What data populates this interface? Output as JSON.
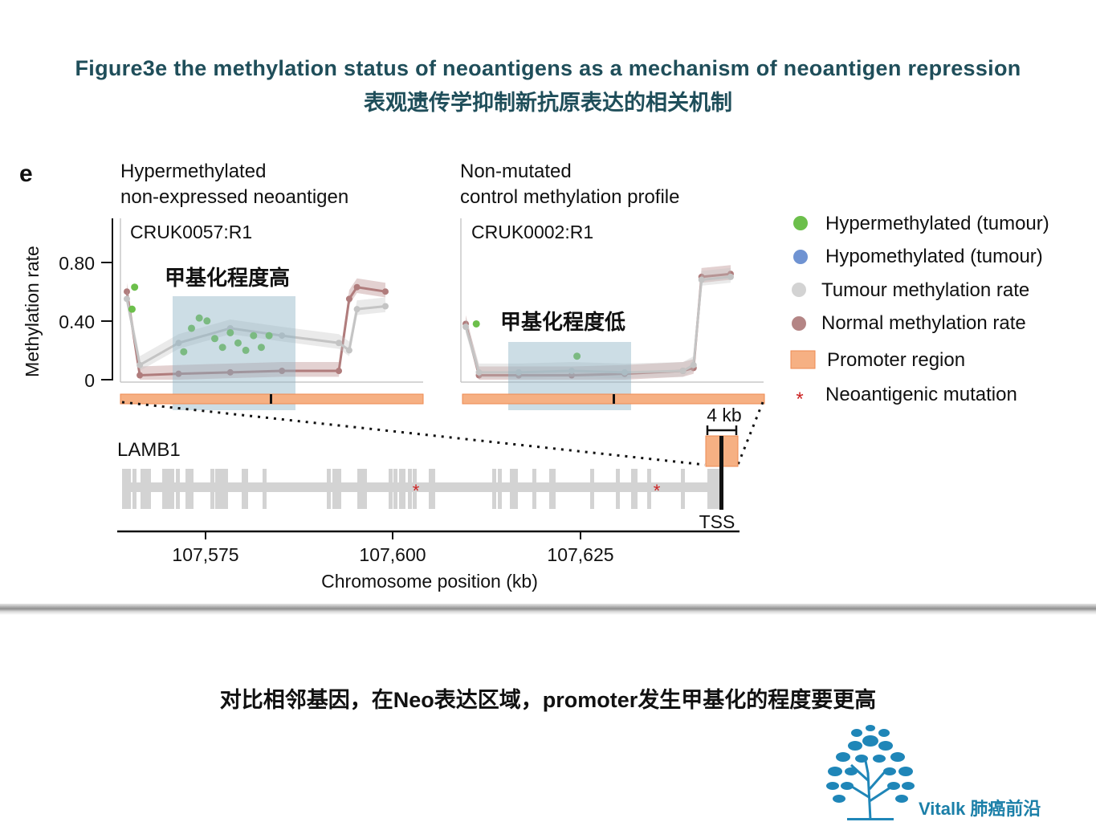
{
  "header": {
    "title_en": "Figure3e  the methylation status of neoantigens as a mechanism of neoantigen repression",
    "title_cn": "表观遗传学抑制新抗原表达的相关机制"
  },
  "figure": {
    "panel_letter": "e",
    "ylabel": "Methylation rate",
    "yticks": [
      "0.80",
      "0.40",
      "0"
    ],
    "xlabel": "Chromosome position (kb)",
    "xticks": [
      "107,575",
      "107,600",
      "107,625"
    ],
    "gene_label": "LAMB1",
    "tss_label": "TSS",
    "scale_label": "4 kb"
  },
  "chart_data": [
    {
      "type": "line",
      "title": "Hypermethylated non-expressed neoantigen",
      "title_lines": [
        "Hypermethylated",
        "non-expressed neoantigen"
      ],
      "sample": "CRUK0057:R1",
      "annotation": "甲基化程度高",
      "ylim": [
        0,
        1.0
      ],
      "series": [
        {
          "name": "Normal methylation rate",
          "x": [
            0,
            0.05,
            0.2,
            0.4,
            0.6,
            0.82,
            0.86,
            0.89,
            1.0
          ],
          "values": [
            0.6,
            0.03,
            0.04,
            0.05,
            0.06,
            0.06,
            0.55,
            0.63,
            0.6
          ]
        },
        {
          "name": "Tumour methylation rate",
          "x": [
            0,
            0.05,
            0.2,
            0.4,
            0.6,
            0.82,
            0.86,
            0.89,
            1.0
          ],
          "values": [
            0.55,
            0.1,
            0.25,
            0.35,
            0.3,
            0.25,
            0.2,
            0.48,
            0.5
          ]
        },
        {
          "name": "Hypermethylated (tumour)",
          "x": [
            0.03,
            0.02,
            0.22,
            0.25,
            0.28,
            0.31,
            0.34,
            0.37,
            0.4,
            0.43,
            0.46,
            0.49,
            0.52,
            0.55
          ],
          "values": [
            0.63,
            0.48,
            0.19,
            0.35,
            0.42,
            0.4,
            0.28,
            0.22,
            0.32,
            0.25,
            0.2,
            0.3,
            0.22,
            0.3
          ]
        }
      ]
    },
    {
      "type": "line",
      "title": "Non-mutated control methylation profile",
      "title_lines": [
        "Non-mutated",
        "control methylation profile"
      ],
      "sample": "CRUK0002:R1",
      "annotation": "甲基化程度低",
      "ylim": [
        0,
        1.0
      ],
      "series": [
        {
          "name": "Normal methylation rate",
          "x": [
            0,
            0.05,
            0.2,
            0.4,
            0.6,
            0.82,
            0.86,
            0.89,
            1.0
          ],
          "values": [
            0.38,
            0.03,
            0.03,
            0.03,
            0.04,
            0.06,
            0.08,
            0.7,
            0.72
          ]
        },
        {
          "name": "Tumour methylation rate",
          "x": [
            0,
            0.05,
            0.2,
            0.4,
            0.6,
            0.82,
            0.86,
            0.89,
            1.0
          ],
          "values": [
            0.36,
            0.05,
            0.05,
            0.06,
            0.05,
            0.06,
            0.1,
            0.68,
            0.7
          ]
        },
        {
          "name": "Hypermethylated (tumour)",
          "x": [
            0.04,
            0.42
          ],
          "values": [
            0.38,
            0.16
          ]
        }
      ]
    }
  ],
  "legend": [
    {
      "label": "Hypermethylated (tumour)",
      "marker": "circle",
      "color": "#6cbf4b"
    },
    {
      "label": "Hypomethylated (tumour)",
      "marker": "circle",
      "color": "#6f93d2"
    },
    {
      "label": "Tumour methylation rate",
      "marker": "circle",
      "color": "#d3d3d3"
    },
    {
      "label": "Normal methylation rate",
      "marker": "circle",
      "color": "#b48585"
    },
    {
      "label": "Promoter region",
      "marker": "rect",
      "color": "#f6b083"
    },
    {
      "label": "Neoantigenic mutation",
      "marker": "star",
      "color": "#cc2222"
    }
  ],
  "caption": "对比相邻基因，在Neo表达区域，promoter发生甲基化的程度要更高",
  "logo": {
    "text": "Vitalk 肺癌前沿",
    "icon": "tree-icon"
  }
}
